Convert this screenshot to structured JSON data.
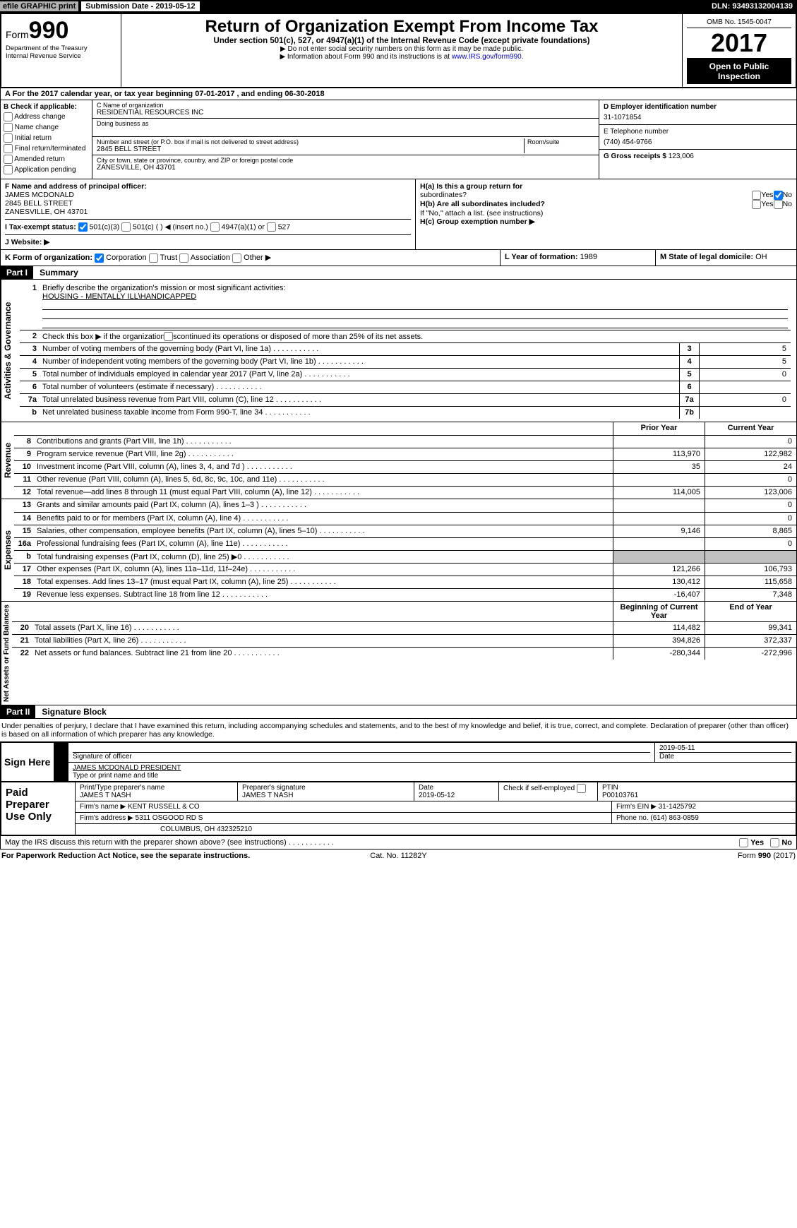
{
  "topbar": {
    "efile": "efile GRAPHIC print",
    "subdate_label": "Submission Date - 2019-05-12",
    "dln": "DLN: 93493132004139"
  },
  "header": {
    "form_prefix": "Form",
    "form_number": "990",
    "dept": "Department of the Treasury",
    "irs": "Internal Revenue Service",
    "title": "Return of Organization Exempt From Income Tax",
    "subtitle": "Under section 501(c), 527, or 4947(a)(1) of the Internal Revenue Code (except private foundations)",
    "note1": "▶ Do not enter social security numbers on this form as it may be made public.",
    "note2_pre": "▶ Information about Form 990 and its instructions is at ",
    "note2_link": "www.IRS.gov/form990",
    "note2_post": ".",
    "omb": "OMB No. 1545-0047",
    "year": "2017",
    "open1": "Open to Public",
    "open2": "Inspection"
  },
  "sectionA": {
    "label_pre": "A   For the 2017 calendar year, or tax year beginning ",
    "begin": "07-01-2017",
    "label_mid": " , and ending ",
    "end": "06-30-2018"
  },
  "boxB": {
    "label": "B Check if applicable:",
    "items": [
      "Address change",
      "Name change",
      "Initial return",
      "Final return/terminated",
      "Amended return",
      "Application pending"
    ]
  },
  "boxC": {
    "name_label": "C Name of organization",
    "name": "RESIDENTIAL RESOURCES INC",
    "dba_label": "Doing business as",
    "street_label": "Number and street (or P.O. box if mail is not delivered to street address)",
    "room_label": "Room/suite",
    "street": "2845 BELL STREET",
    "city_label": "City or town, state or province, country, and ZIP or foreign postal code",
    "city": "ZANESVILLE, OH  43701"
  },
  "boxD": {
    "label": "D Employer identification number",
    "value": "31-1071854"
  },
  "boxE": {
    "label": "E Telephone number",
    "value": "(740) 454-9766"
  },
  "boxG": {
    "label": "G Gross receipts $ ",
    "value": "123,006"
  },
  "boxF": {
    "label": "F Name and address of principal officer:",
    "line1": "JAMES MCDONALD",
    "line2": "2845 BELL STREET",
    "line3": "ZANESVILLE, OH  43701"
  },
  "boxH": {
    "a": "H(a)   Is this a group return for",
    "a2": "subordinates?",
    "b": "H(b)   Are all subordinates included?",
    "bnote": "If \"No,\" attach a list. (see instructions)",
    "c": "H(c)   Group exemption number ▶",
    "yes": "Yes",
    "no": "No"
  },
  "boxI": {
    "label": "I    Tax-exempt status:",
    "opt1": "501(c)(3)",
    "opt2": "501(c) (   ) ◀ (insert no.)",
    "opt3": "4947(a)(1) or",
    "opt4": "527"
  },
  "boxJ": {
    "label": "J   Website: ▶"
  },
  "boxK": {
    "label": "K Form of organization:",
    "opt1": "Corporation",
    "opt2": "Trust",
    "opt3": "Association",
    "opt4": "Other ▶"
  },
  "boxL": {
    "label": "L Year of formation: ",
    "value": "1989"
  },
  "boxM": {
    "label": "M State of legal domicile: ",
    "value": "OH"
  },
  "partI": {
    "header": "Part I",
    "title": "Summary",
    "side_activities": "Activities & Governance",
    "side_revenue": "Revenue",
    "side_expenses": "Expenses",
    "side_netassets": "Net Assets or Fund Balances",
    "line1_label": "Briefly describe the organization's mission or most significant activities:",
    "line1_value": "HOUSING - MENTALLY ILL\\HANDICAPPED",
    "line2": "Check this box ▶        if the organization discontinued its operations or disposed of more than 25% of its net assets.",
    "rows_gov": [
      {
        "n": "3",
        "d": "Number of voting members of the governing body (Part VI, line 1a)",
        "box": "3",
        "v": "5"
      },
      {
        "n": "4",
        "d": "Number of independent voting members of the governing body (Part VI, line 1b)",
        "box": "4",
        "v": "5"
      },
      {
        "n": "5",
        "d": "Total number of individuals employed in calendar year 2017 (Part V, line 2a)",
        "box": "5",
        "v": "0"
      },
      {
        "n": "6",
        "d": "Total number of volunteers (estimate if necessary)",
        "box": "6",
        "v": ""
      },
      {
        "n": "7a",
        "d": "Total unrelated business revenue from Part VIII, column (C), line 12",
        "box": "7a",
        "v": "0"
      },
      {
        "n": "b",
        "d": "Net unrelated business taxable income from Form 990-T, line 34",
        "box": "7b",
        "v": ""
      }
    ],
    "col_prior": "Prior Year",
    "col_current": "Current Year",
    "rows_rev": [
      {
        "n": "8",
        "d": "Contributions and grants (Part VIII, line 1h)",
        "p": "",
        "c": "0"
      },
      {
        "n": "9",
        "d": "Program service revenue (Part VIII, line 2g)",
        "p": "113,970",
        "c": "122,982"
      },
      {
        "n": "10",
        "d": "Investment income (Part VIII, column (A), lines 3, 4, and 7d )",
        "p": "35",
        "c": "24"
      },
      {
        "n": "11",
        "d": "Other revenue (Part VIII, column (A), lines 5, 6d, 8c, 9c, 10c, and 11e)",
        "p": "",
        "c": "0"
      },
      {
        "n": "12",
        "d": "Total revenue—add lines 8 through 11 (must equal Part VIII, column (A), line 12)",
        "p": "114,005",
        "c": "123,006"
      }
    ],
    "rows_exp": [
      {
        "n": "13",
        "d": "Grants and similar amounts paid (Part IX, column (A), lines 1–3 )",
        "p": "",
        "c": "0"
      },
      {
        "n": "14",
        "d": "Benefits paid to or for members (Part IX, column (A), line 4)",
        "p": "",
        "c": "0"
      },
      {
        "n": "15",
        "d": "Salaries, other compensation, employee benefits (Part IX, column (A), lines 5–10)",
        "p": "9,146",
        "c": "8,865"
      },
      {
        "n": "16a",
        "d": "Professional fundraising fees (Part IX, column (A), line 11e)",
        "p": "",
        "c": "0"
      },
      {
        "n": "b",
        "d": "Total fundraising expenses (Part IX, column (D), line 25) ▶0",
        "p": "gray",
        "c": "gray"
      },
      {
        "n": "17",
        "d": "Other expenses (Part IX, column (A), lines 11a–11d, 11f–24e)",
        "p": "121,266",
        "c": "106,793"
      },
      {
        "n": "18",
        "d": "Total expenses. Add lines 13–17 (must equal Part IX, column (A), line 25)",
        "p": "130,412",
        "c": "115,658"
      },
      {
        "n": "19",
        "d": "Revenue less expenses. Subtract line 18 from line 12",
        "p": "-16,407",
        "c": "7,348"
      }
    ],
    "col_begin": "Beginning of Current Year",
    "col_end": "End of Year",
    "rows_net": [
      {
        "n": "20",
        "d": "Total assets (Part X, line 16)",
        "p": "114,482",
        "c": "99,341"
      },
      {
        "n": "21",
        "d": "Total liabilities (Part X, line 26)",
        "p": "394,826",
        "c": "372,337"
      },
      {
        "n": "22",
        "d": "Net assets or fund balances. Subtract line 21 from line 20",
        "p": "-280,344",
        "c": "-272,996"
      }
    ]
  },
  "partII": {
    "header": "Part II",
    "title": "Signature Block",
    "penalty": "Under penalties of perjury, I declare that I have examined this return, including accompanying schedules and statements, and to the best of my knowledge and belief, it is true, correct, and complete. Declaration of preparer (other than officer) is based on all information of which preparer has any knowledge.",
    "sign_here": "Sign Here",
    "sig_label": "Signature of officer",
    "date_label": "Date",
    "sig_date": "2019-05-11",
    "name_value": "JAMES MCDONALD  PRESIDENT",
    "name_label": "Type or print name and title"
  },
  "preparer": {
    "lbl": "Paid Preparer Use Only",
    "r1": {
      "a": "Print/Type preparer's name",
      "av": "JAMES T NASH",
      "b": "Preparer's signature",
      "bv": "JAMES T NASH",
      "c": "Date",
      "cv": "2019-05-12",
      "d": "Check        if self-employed",
      "e": "PTIN",
      "ev": "P00103761"
    },
    "r2": {
      "a": "Firm's name      ▶ ",
      "av": "KENT RUSSELL & CO",
      "b": "Firm's EIN ▶ ",
      "bv": "31-1425792"
    },
    "r3": {
      "a": "Firm's address ▶ ",
      "av": "5311 OSGOOD RD S",
      "b": "Phone no. ",
      "bv": "(614) 863-0859"
    },
    "r4": {
      "av": "COLUMBUS, OH  432325210"
    }
  },
  "discuss": {
    "text": "May the IRS discuss this return with the preparer shown above? (see instructions)",
    "yes": "Yes",
    "no": "No"
  },
  "footer": {
    "a": "For Paperwork Reduction Act Notice, see the separate instructions.",
    "b": "Cat. No. 11282Y",
    "c": "Form 990 (2017)"
  }
}
